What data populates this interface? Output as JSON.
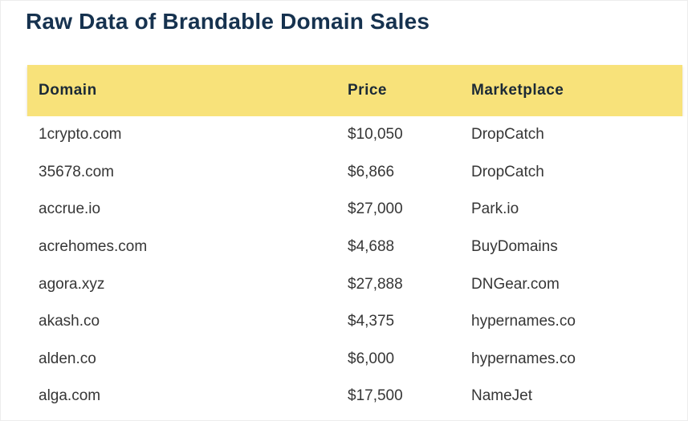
{
  "title": "Raw Data of Brandable Domain Sales",
  "table": {
    "columns": [
      "Domain",
      "Price",
      "Marketplace"
    ],
    "rows": [
      {
        "domain": "1crypto.com",
        "price": "$10,050",
        "marketplace": "DropCatch"
      },
      {
        "domain": "35678.com",
        "price": "$6,866",
        "marketplace": "DropCatch"
      },
      {
        "domain": "accrue.io",
        "price": "$27,000",
        "marketplace": "Park.io"
      },
      {
        "domain": "acrehomes.com",
        "price": "$4,688",
        "marketplace": "BuyDomains"
      },
      {
        "domain": "agora.xyz",
        "price": "$27,888",
        "marketplace": "DNGear.com"
      },
      {
        "domain": "akash.co",
        "price": "$4,375",
        "marketplace": "hypernames.co"
      },
      {
        "domain": "alden.co",
        "price": "$6,000",
        "marketplace": "hypernames.co"
      },
      {
        "domain": "alga.com",
        "price": "$17,500",
        "marketplace": "NameJet"
      }
    ]
  },
  "colors": {
    "header_background": "#F8E27A",
    "title_text": "#16324F",
    "header_text": "#1C2A36",
    "body_text": "#363636",
    "page_border": "#ECECEC"
  },
  "chart_data": {
    "type": "table",
    "title": "Raw Data of Brandable Domain Sales",
    "columns": [
      "Domain",
      "Price",
      "Marketplace"
    ],
    "rows": [
      [
        "1crypto.com",
        "$10,050",
        "DropCatch"
      ],
      [
        "35678.com",
        "$6,866",
        "DropCatch"
      ],
      [
        "accrue.io",
        "$27,000",
        "Park.io"
      ],
      [
        "acrehomes.com",
        "$4,688",
        "BuyDomains"
      ],
      [
        "agora.xyz",
        "$27,888",
        "DNGear.com"
      ],
      [
        "akash.co",
        "$4,375",
        "hypernames.co"
      ],
      [
        "alden.co",
        "$6,000",
        "hypernames.co"
      ],
      [
        "alga.com",
        "$17,500",
        "NameJet"
      ]
    ]
  }
}
